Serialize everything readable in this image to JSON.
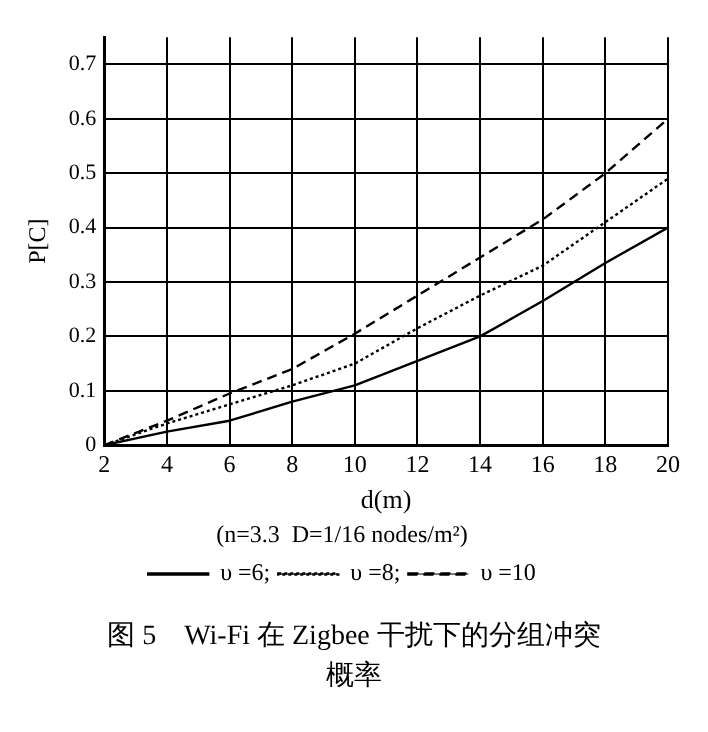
{
  "chart_data": {
    "type": "line",
    "title": "图 5　Wi-Fi 在 Zigbee 干扰下的分组冲突概率",
    "subtitle": "(n=3.3  D=1/16 nodes/m²)",
    "xlabel": "d(m)",
    "ylabel": "P[C]",
    "x": [
      2,
      4,
      6,
      8,
      10,
      12,
      14,
      16,
      18,
      20
    ],
    "series": [
      {
        "name": "υ =6;",
        "color": "#000000",
        "line_style": "solid",
        "values": [
          0,
          0.025,
          0.045,
          0.08,
          0.11,
          0.155,
          0.2,
          0.265,
          0.335,
          0.4
        ]
      },
      {
        "name": "υ =8;",
        "color": "#000000",
        "line_style": "dotted",
        "values": [
          0,
          0.04,
          0.075,
          0.11,
          0.15,
          0.215,
          0.275,
          0.33,
          0.41,
          0.49
        ]
      },
      {
        "name": "υ =10",
        "color": "#000000",
        "line_style": "dashed",
        "values": [
          0,
          0.045,
          0.095,
          0.14,
          0.205,
          0.275,
          0.345,
          0.415,
          0.5,
          0.6
        ]
      }
    ],
    "xlim": [
      2,
      20
    ],
    "xticks": [
      2,
      4,
      6,
      8,
      10,
      12,
      14,
      16,
      18,
      20
    ],
    "ylim": [
      0,
      0.75
    ],
    "yticks": [
      0,
      0.1,
      0.2,
      0.3,
      0.4,
      0.5,
      0.6,
      0.7
    ],
    "grid": true,
    "legend": "bottom",
    "marker": "none"
  }
}
